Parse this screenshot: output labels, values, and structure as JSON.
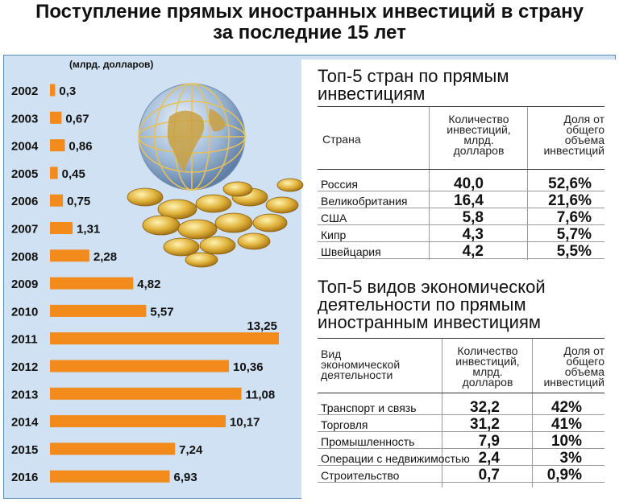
{
  "title": {
    "line1": "Поступление прямых иностранных инвестиций в страну",
    "line2": "за последние 15 лет"
  },
  "chart_data": {
    "type": "bar",
    "orientation": "horizontal",
    "unit_label": "(млрд. долларов)",
    "categories": [
      "2002",
      "2003",
      "2004",
      "2005",
      "2006",
      "2007",
      "2008",
      "2009",
      "2010",
      "2011",
      "2012",
      "2013",
      "2014",
      "2015",
      "2016"
    ],
    "values": [
      0.3,
      0.67,
      0.86,
      0.45,
      0.75,
      1.31,
      2.28,
      4.82,
      5.57,
      13.25,
      10.36,
      11.08,
      10.17,
      7.24,
      6.93
    ],
    "value_labels": [
      "0,3",
      "0,67",
      "0,86",
      "0,45",
      "0,75",
      "1,31",
      "2,28",
      "4,82",
      "5,57",
      "13,25",
      "10,36",
      "11,08",
      "10,17",
      "7,24",
      "6,93"
    ],
    "bar_color": "#f28a1c"
  },
  "countries": {
    "title_line1": "Топ-5 стран по прямым",
    "title_line2": "инвестициям",
    "col_country": "Страна",
    "col_amount": [
      "Количество",
      "инвестиций,",
      "млрд.",
      "долларов"
    ],
    "col_share": [
      "Доля от",
      "общего",
      "объема",
      "инвестиций"
    ],
    "rows": [
      {
        "name": "Россия",
        "amount": "40,0",
        "share": "52,6%"
      },
      {
        "name": "Великобритания",
        "amount": "16,4",
        "share": "21,6%"
      },
      {
        "name": "США",
        "amount": "5,8",
        "share": "7,6%"
      },
      {
        "name": "Кипр",
        "amount": "4,3",
        "share": "5,7%"
      },
      {
        "name": "Швейцария",
        "amount": "4,2",
        "share": "5,5%"
      }
    ]
  },
  "activities": {
    "title_line1": "Топ-5 видов экономической",
    "title_line2": "деятельности по прямым",
    "title_line3": "иностранным инвестициям",
    "col_type": [
      "Вид",
      "экономической",
      "деятельности"
    ],
    "col_amount": [
      "Количество",
      "инвестиций,",
      "млрд.",
      "долларов"
    ],
    "col_share": [
      "Доля от",
      "общего",
      "объема",
      "инвестиций"
    ],
    "rows": [
      {
        "name": "Транспорт и связь",
        "amount": "32,2",
        "share": "42%"
      },
      {
        "name": "Торговля",
        "amount": "31,2",
        "share": "41%"
      },
      {
        "name": "Промышленность",
        "amount": "7,9",
        "share": "10%"
      },
      {
        "name": "Операции с недвижимостью",
        "amount": "2,4",
        "share": "3%"
      },
      {
        "name": "Строительство",
        "amount": "0,7",
        "share": "0,9%"
      }
    ]
  }
}
